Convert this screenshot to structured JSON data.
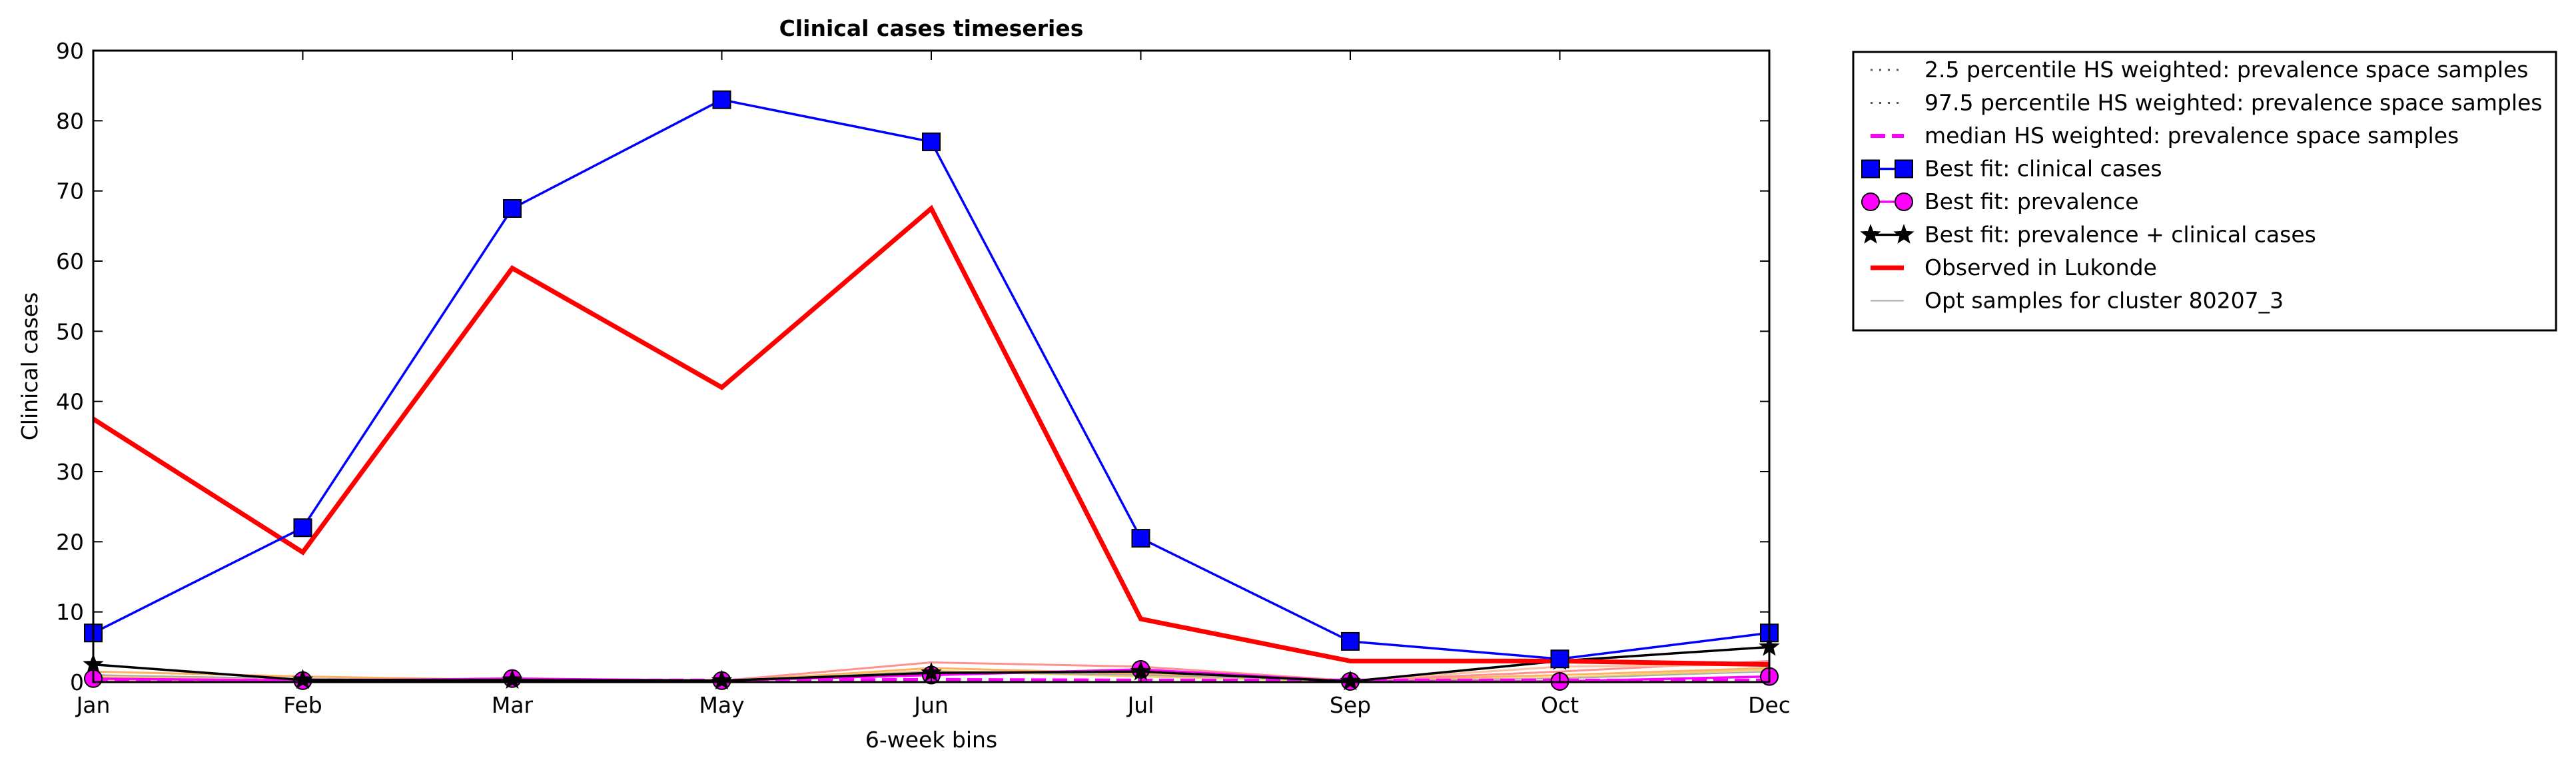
{
  "chart_data": {
    "type": "line",
    "title": "Clinical cases timeseries",
    "xlabel": "6-week bins",
    "ylabel": "Clinical cases",
    "x_ticks": [
      "Jan",
      "Feb",
      "Mar",
      "May",
      "Jun",
      "Jul",
      "Sep",
      "Oct",
      "Dec"
    ],
    "ylim": [
      0,
      90
    ],
    "y_ticks": [
      0,
      10,
      20,
      30,
      40,
      50,
      60,
      70,
      80,
      90
    ],
    "grid": false,
    "legend_position": "outside-right",
    "series": [
      {
        "name": "2.5 percentile HS weighted: prevalence space samples",
        "color": "#555555",
        "style": "dotted",
        "values": [
          0,
          0,
          0,
          0,
          0,
          0,
          0,
          0,
          0
        ]
      },
      {
        "name": "97.5 percentile HS weighted: prevalence space samples",
        "color": "#555555",
        "style": "dotted",
        "values": [
          0,
          0,
          0,
          0,
          0,
          0,
          0,
          0,
          0
        ]
      },
      {
        "name": "median HS weighted: prevalence space samples",
        "color": "#ff00ff",
        "style": "dashed",
        "values": [
          0.2,
          0.2,
          0.2,
          0.2,
          0.3,
          0.2,
          0.2,
          0.2,
          0.2
        ]
      },
      {
        "name": "Best fit: clinical cases",
        "color": "#0000ff",
        "style": "solid",
        "marker": "square",
        "values": [
          7,
          22,
          67.5,
          83,
          77,
          20.5,
          5.8,
          3.3,
          7
        ]
      },
      {
        "name": "Best fit: prevalence",
        "color": "#ff00ff",
        "style": "solid",
        "marker": "circle",
        "values": [
          0.5,
          0.2,
          0.5,
          0.2,
          1.0,
          1.8,
          0.1,
          0.1,
          0.8
        ]
      },
      {
        "name": "Best fit: prevalence + clinical cases",
        "color": "#000000",
        "style": "solid",
        "marker": "star",
        "values": [
          2.5,
          0.3,
          0.3,
          0.2,
          1.3,
          1.5,
          0.1,
          3.0,
          5.0
        ]
      },
      {
        "name": "Observed in Lukonde",
        "color": "#ff0000",
        "style": "solid",
        "values": [
          37.5,
          18.5,
          59,
          42,
          67.5,
          9,
          3,
          3,
          2.5
        ]
      },
      {
        "name": "Opt samples for cluster 80207_3",
        "color": "#aaaaaa",
        "style": "solid",
        "values": [
          1.0,
          0.5,
          0.3,
          0.2,
          1.5,
          1.0,
          0.2,
          0.5,
          1.5
        ]
      }
    ],
    "sample_traces": [
      {
        "color": "#ffb060",
        "values": [
          1.5,
          0.8,
          0.3,
          0.1,
          2.0,
          1.2,
          0.2,
          1.0,
          2.0
        ]
      },
      {
        "color": "#ff9090",
        "values": [
          1.0,
          0.3,
          0.2,
          0.2,
          2.8,
          2.2,
          0.2,
          1.5,
          3.0
        ]
      },
      {
        "color": "#f0d070",
        "values": [
          0.8,
          0.2,
          0.2,
          0.1,
          1.6,
          0.8,
          0.1,
          0.6,
          1.8
        ]
      },
      {
        "color": "#ffc0a0",
        "values": [
          0.3,
          0.1,
          0.4,
          0.3,
          1.2,
          1.5,
          0.2,
          2.2,
          2.5
        ]
      }
    ]
  }
}
